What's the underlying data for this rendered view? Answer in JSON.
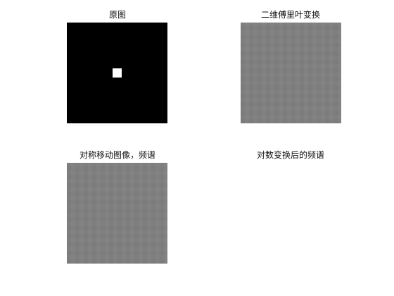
{
  "figure": {
    "subplots": [
      {
        "title": "原图",
        "content": "black-with-white-center-square"
      },
      {
        "title": "二维傅里叶变换",
        "content": "uniform-gray"
      },
      {
        "title": "对称移动图像，频谱",
        "content": "uniform-gray"
      },
      {
        "title": "对数变换后的频谱",
        "content": "empty"
      }
    ],
    "colors": {
      "background": "#ffffff",
      "original_bg": "#000000",
      "original_square": "#ffffff",
      "spectrum_gray": "#808080"
    }
  }
}
